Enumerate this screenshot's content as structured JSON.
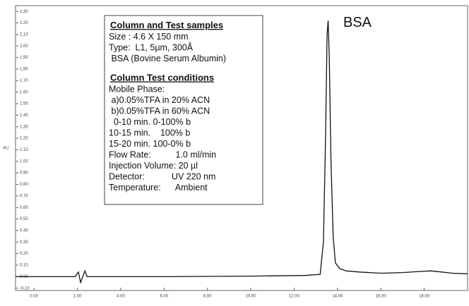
{
  "chart_data": {
    "type": "line",
    "y_label": "AU",
    "annotation": "BSA",
    "info_box": [
      {
        "heading": "Column and Test samples",
        "lines": [
          "Size : 4.6 X 150 mm",
          "Type:  L1, 5µm, 300Å",
          " BSA (Bovine Serum Albumin)"
        ]
      },
      {
        "heading": "Column Test conditions",
        "lines": [
          "Mobile Phase:",
          " a)0.05%TFA in 20% ACN",
          " b)0.05%TFA in 60% ACN",
          "  0-10 min. 0-100% b",
          "10-15 min.    100% b",
          "15-20 min. 100-0% b",
          "Flow Rate:          1.0 ml/min",
          "Injection Volume: 20 µl",
          "Detector:           UV 220 nm",
          "Temperature:      Ambient"
        ]
      }
    ],
    "series": [
      {
        "name": "BSA",
        "color": "#111111",
        "x": [
          -0.85,
          1.9,
          2.05,
          2.15,
          2.25,
          2.35,
          2.45,
          2.6,
          6,
          10,
          12.5,
          13.2,
          13.35,
          13.45,
          13.52,
          13.57,
          13.62,
          13.7,
          13.8,
          13.9,
          14.1,
          14.4,
          15,
          16,
          17,
          17.8,
          18.3,
          18.8,
          19.3,
          20
        ],
        "values": [
          0.0,
          0.0,
          0.04,
          -0.05,
          0.0,
          0.05,
          0.0,
          0.0,
          0.0,
          0.005,
          0.01,
          0.02,
          0.3,
          1.2,
          2.1,
          2.22,
          1.9,
          1.0,
          0.35,
          0.12,
          0.07,
          0.05,
          0.04,
          0.03,
          0.035,
          0.045,
          0.05,
          0.04,
          0.03,
          0.025
        ]
      }
    ],
    "xlim": [
      -0.85,
      20.0
    ],
    "ylim": [
      -0.12,
      2.35
    ],
    "xticks": [
      {
        "value": 0,
        "label": "0.00"
      },
      {
        "value": 2,
        "label": "2.00"
      },
      {
        "value": 4,
        "label": "4.00"
      },
      {
        "value": 6,
        "label": "6.00"
      },
      {
        "value": 8,
        "label": "8.00"
      },
      {
        "value": 10,
        "label": "10.00"
      },
      {
        "value": 12,
        "label": "12.00"
      },
      {
        "value": 14,
        "label": "14.00"
      },
      {
        "value": 16,
        "label": "16.00"
      },
      {
        "value": 18,
        "label": "18.00"
      }
    ],
    "yticks": [
      {
        "value": -0.1,
        "label": "-0.10"
      },
      {
        "value": 0,
        "label": "0.00"
      },
      {
        "value": 0.1,
        "label": "0.10"
      },
      {
        "value": 0.2,
        "label": "0.20"
      },
      {
        "value": 0.3,
        "label": "0.30"
      },
      {
        "value": 0.4,
        "label": "0.40"
      },
      {
        "value": 0.5,
        "label": "0.50"
      },
      {
        "value": 0.6,
        "label": "0.60"
      },
      {
        "value": 0.7,
        "label": "0.70"
      },
      {
        "value": 0.8,
        "label": "0.80"
      },
      {
        "value": 0.9,
        "label": "0.90"
      },
      {
        "value": 1.0,
        "label": "1.00"
      },
      {
        "value": 1.1,
        "label": "1.10"
      },
      {
        "value": 1.2,
        "label": "1.20"
      },
      {
        "value": 1.3,
        "label": "1.30"
      },
      {
        "value": 1.4,
        "label": "1.40"
      },
      {
        "value": 1.5,
        "label": "1.50"
      },
      {
        "value": 1.6,
        "label": "1.60"
      },
      {
        "value": 1.7,
        "label": "1.70"
      },
      {
        "value": 1.8,
        "label": "1.80"
      },
      {
        "value": 1.9,
        "label": "1.90"
      },
      {
        "value": 2.0,
        "label": "2.00"
      },
      {
        "value": 2.1,
        "label": "2.10"
      },
      {
        "value": 2.2,
        "label": "2.20"
      },
      {
        "value": 2.3,
        "label": "2.30"
      }
    ]
  }
}
